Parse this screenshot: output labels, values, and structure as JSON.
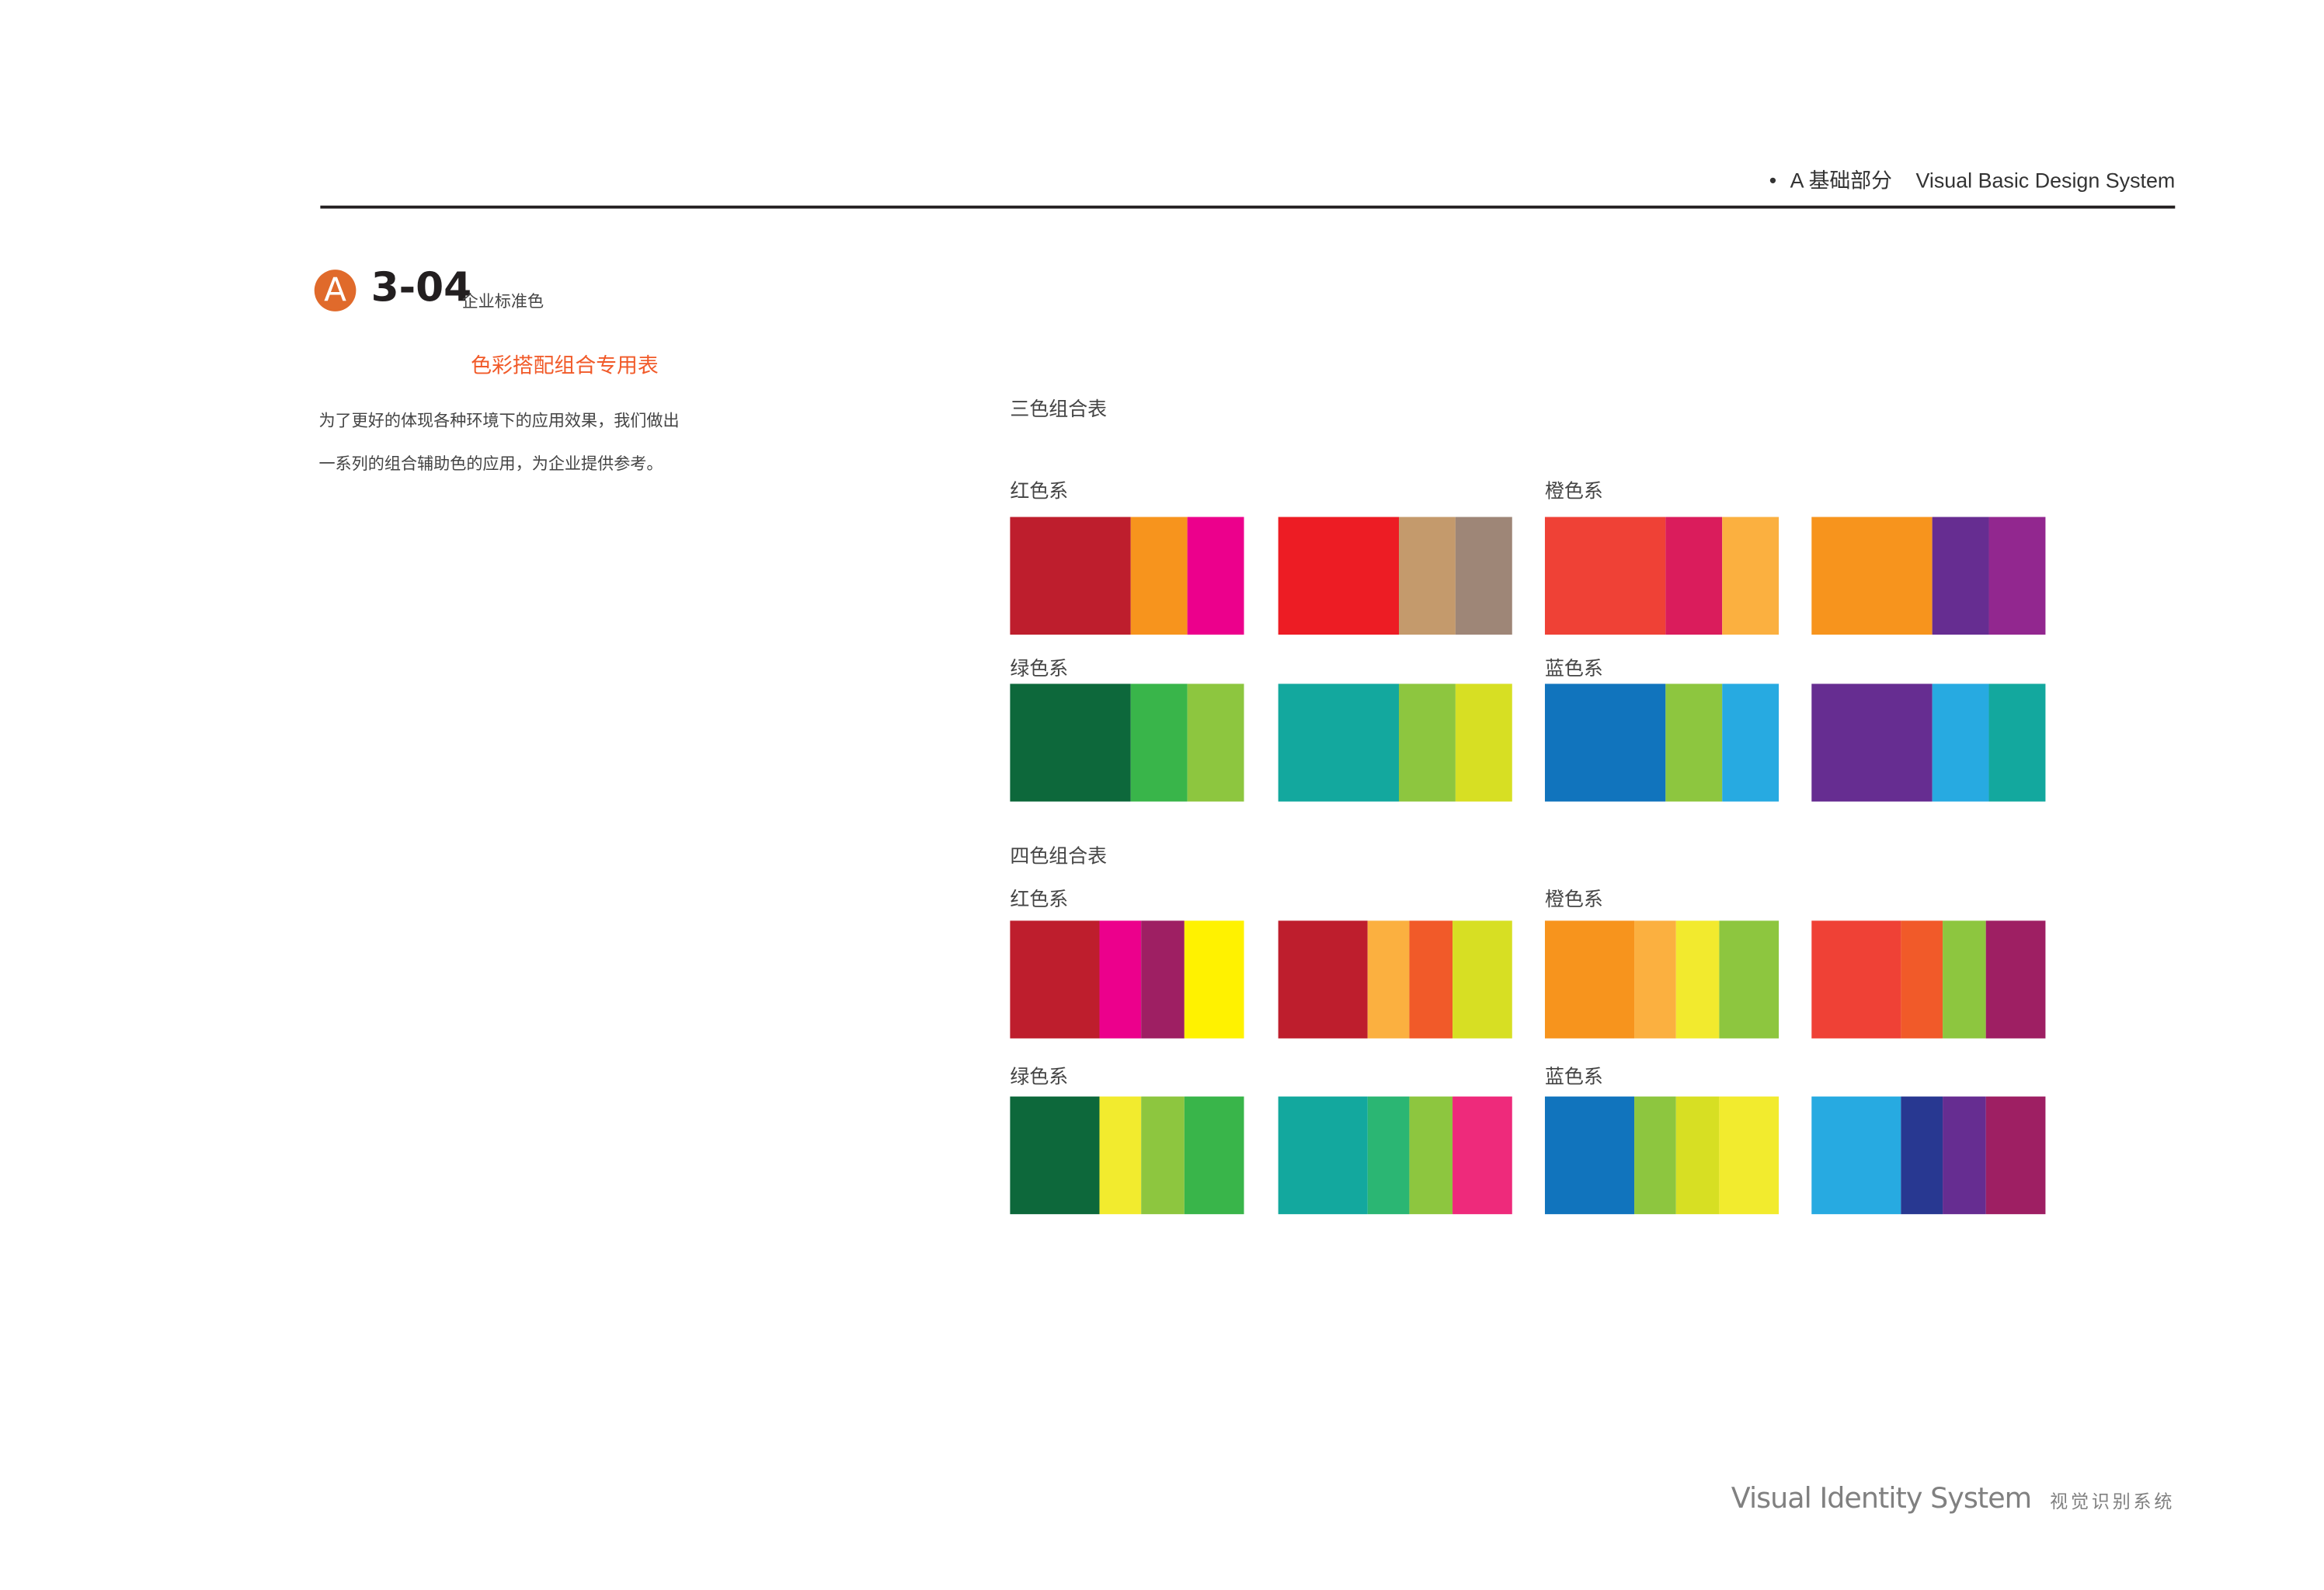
{
  "header": {
    "bullet": "•",
    "section_letter": "A",
    "section_cn": "基础部分",
    "section_en": "Visual Basic Design System"
  },
  "title": {
    "badge": "A",
    "number": "3-04",
    "subtitle": "企业标准色"
  },
  "intro": {
    "heading": "色彩搭配组合专用表",
    "lines": [
      "为了更好的体现各种环境下的应用效果，我们做出",
      "一系列的组合辅助色的应用，为企业提供参考。"
    ]
  },
  "three_color": {
    "title": "三色组合表",
    "labels": {
      "red": "红色系",
      "orange": "橙色系",
      "green": "绿色系",
      "blue": "蓝色系"
    },
    "rows": [
      [
        [
          "#BE1E2D",
          "#F7941D",
          "#EC008C"
        ],
        [
          "#ED1C24",
          "#C49A6C",
          "#9E8677"
        ],
        [
          "#EF4136",
          "#DA1C5C",
          "#FBB040"
        ],
        [
          "#F7941D",
          "#662D91",
          "#92278F"
        ]
      ],
      [
        [
          "#0D683B",
          "#39B54A",
          "#8DC63F"
        ],
        [
          "#13A89E",
          "#8DC63F",
          "#D7DF23"
        ],
        [
          "#1174BD",
          "#8DC63F",
          "#27AAE1"
        ],
        [
          "#662D91",
          "#27AAE1",
          "#13A89E"
        ]
      ]
    ]
  },
  "four_color": {
    "title": "四色组合表",
    "labels": {
      "red": "红色系",
      "orange": "橙色系",
      "green": "绿色系",
      "blue": "蓝色系"
    },
    "rows": [
      [
        [
          "#BE1E2D",
          "#EC008C",
          "#9E1F63",
          "#FFF200"
        ],
        [
          "#BE1E2D",
          "#FBB040",
          "#F15A29",
          "#D7DF23"
        ],
        [
          "#F7941D",
          "#FBB040",
          "#F2EA2E",
          "#8DC63F"
        ],
        [
          "#EF4136",
          "#F15A29",
          "#8DC63F",
          "#9E1F63"
        ]
      ],
      [
        [
          "#0D683B",
          "#F2EB2E",
          "#8DC63F",
          "#39B54A"
        ],
        [
          "#13A89E",
          "#2BB673",
          "#8DC63F",
          "#EE2A7B"
        ],
        [
          "#1174BD",
          "#8DC63F",
          "#D7DF23",
          "#F2EB2E"
        ],
        [
          "#27AAE1",
          "#283891",
          "#662D91",
          "#9E1F63"
        ]
      ]
    ]
  },
  "footer": {
    "en": "Visual Identity System",
    "cn": "视觉识别系统"
  },
  "colors": {
    "accent": "#F15A29",
    "badge": "#E06A2B"
  }
}
